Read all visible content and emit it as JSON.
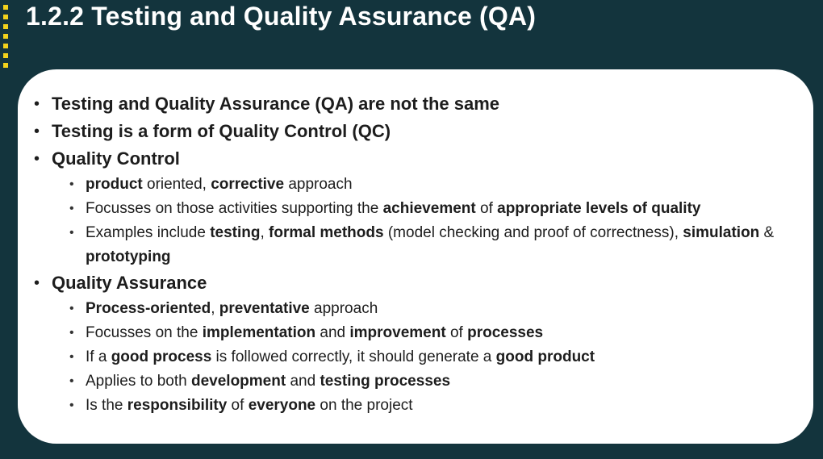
{
  "slide": {
    "title": "1.2.2 Testing and Quality Assurance (QA)",
    "accent_color": "#f2d21c",
    "background_color": "#13343d"
  },
  "bullets": {
    "b1": "Testing and Quality Assurance (QA) are not the same",
    "b2": "Testing is a form of Quality Control (QC)",
    "b3": "Quality Control",
    "b4": "Quality Assurance"
  },
  "qc": {
    "s1": {
      "a": "product",
      "b": " oriented, ",
      "c": "corrective",
      "d": " approach"
    },
    "s2": {
      "a": "Focusses on those activities supporting the ",
      "b": "achievement",
      "c": " of ",
      "d": "appropriate levels of quality"
    },
    "s3": {
      "a": "Examples include ",
      "b": "testing",
      "c": ", ",
      "d": "formal methods",
      "e": " (model checking and proof of correctness), ",
      "f": "simulation",
      "g": " & ",
      "h": "prototyping"
    }
  },
  "qa": {
    "s1": {
      "a": "Process-oriented",
      "b": ", ",
      "c": "preventative",
      "d": " approach"
    },
    "s2": {
      "a": "Focusses on the ",
      "b": "implementation",
      "c": " and ",
      "d": "improvement",
      "e": " of ",
      "f": "processes"
    },
    "s3": {
      "a": "If a ",
      "b": "good process",
      "c": " is followed correctly, it should generate a ",
      "d": "good product"
    },
    "s4": {
      "a": "Applies to both ",
      "b": "development",
      "c": " and ",
      "d": "testing processes"
    },
    "s5": {
      "a": "Is the ",
      "b": "responsibility",
      "c": " of ",
      "d": "everyone",
      "e": " on the project"
    }
  }
}
